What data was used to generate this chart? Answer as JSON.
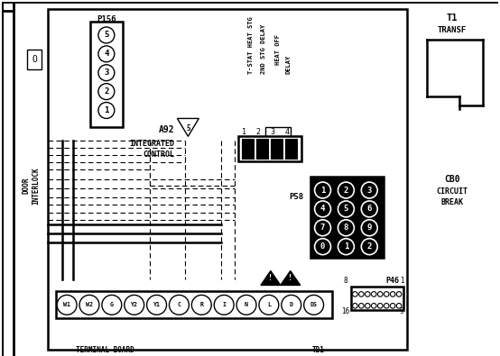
{
  "bg_color": "#ffffff",
  "line_color": "#000000",
  "figsize": [
    5.54,
    3.95
  ],
  "dpi": 100,
  "p156_label": "P156",
  "p156_pins": [
    "5",
    "4",
    "3",
    "2",
    "1"
  ],
  "a92_label": [
    "A92",
    "INTEGRATED",
    "CONTROL"
  ],
  "vertical_labels": [
    "T-STAT HEAT STG",
    "2ND STG DELAY",
    "HEAT OFF",
    "DELAY"
  ],
  "conn4_nums": [
    "1",
    "2",
    "3",
    "4"
  ],
  "p58_label": "P58",
  "p58_rows": [
    [
      "3",
      "2",
      "1"
    ],
    [
      "6",
      "5",
      "4"
    ],
    [
      "9",
      "8",
      "7"
    ],
    [
      "2",
      "1",
      "0"
    ]
  ],
  "tb_left": [
    "W1",
    "W2",
    "G",
    "Y2",
    "Y1"
  ],
  "tb_right": [
    "C",
    "R",
    "I",
    "N",
    "L",
    "D",
    "DS"
  ],
  "tb_label1": "TERMINAL BOARD",
  "tb_label2": "TB1",
  "p46_label": "P46",
  "t1_label": [
    "T1",
    "TRANSF"
  ],
  "cb_label": [
    "CB0",
    "CIRCUIT",
    "BREAK"
  ]
}
